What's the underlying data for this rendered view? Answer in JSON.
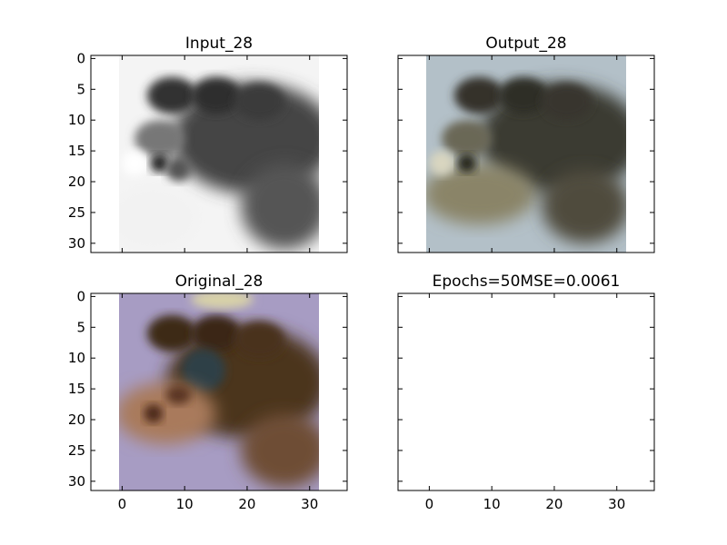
{
  "chart_data": [
    {
      "type": "image",
      "title": "Input_28",
      "xlim": [
        -5,
        36
      ],
      "ylim": [
        31.5,
        -0.5
      ],
      "xticks": [
        0,
        10,
        20,
        30
      ],
      "yticks": [
        0,
        5,
        10,
        15,
        20,
        25,
        30
      ],
      "show_xtick_labels": false,
      "show_ytick_labels": true,
      "image": {
        "kind": "grayscale",
        "extent": [
          -0.5,
          31.5,
          31.5,
          -0.5
        ],
        "background": "#f4f4f4",
        "subject": "#3a3a3a"
      }
    },
    {
      "type": "image",
      "title": "Output_28",
      "xlim": [
        -5,
        36
      ],
      "ylim": [
        31.5,
        -0.5
      ],
      "xticks": [
        0,
        10,
        20,
        30
      ],
      "yticks": [
        0,
        5,
        10,
        15,
        20,
        25,
        30
      ],
      "show_xtick_labels": false,
      "show_ytick_labels": false,
      "image": {
        "kind": "rgb",
        "extent": [
          -0.5,
          31.5,
          31.5,
          -0.5
        ],
        "background": "#b3c0c8",
        "subject": "#3b3a30"
      }
    },
    {
      "type": "image",
      "title": "Original_28",
      "xlim": [
        -5,
        36
      ],
      "ylim": [
        31.5,
        -0.5
      ],
      "xticks": [
        0,
        10,
        20,
        30
      ],
      "yticks": [
        0,
        5,
        10,
        15,
        20,
        25,
        30
      ],
      "show_xtick_labels": true,
      "show_ytick_labels": true,
      "image": {
        "kind": "rgb",
        "extent": [
          -0.5,
          31.5,
          31.5,
          -0.5
        ],
        "background": "#a79cc3",
        "subject": "#4a3420"
      }
    },
    {
      "type": "image",
      "title": "Epochs=50MSE=0.0061",
      "xlim": [
        -5,
        36
      ],
      "ylim": [
        31.5,
        -0.5
      ],
      "xticks": [
        0,
        10,
        20,
        30
      ],
      "yticks": [
        0,
        5,
        10,
        15,
        20,
        25,
        30
      ],
      "show_xtick_labels": true,
      "show_ytick_labels": false,
      "image": null
    }
  ]
}
